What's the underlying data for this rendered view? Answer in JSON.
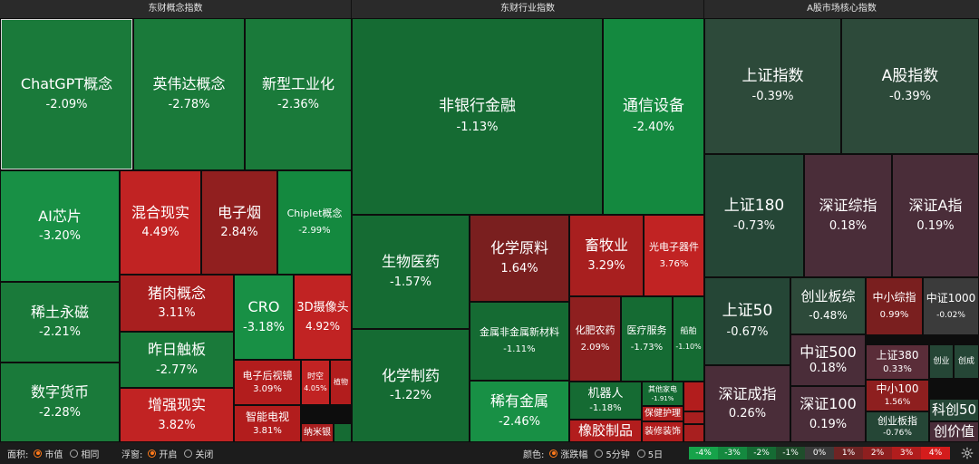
{
  "panels": {
    "concept": "东财概念指数",
    "industry": "东财行业指数",
    "market": "A股市场核心指数"
  },
  "tiles": {
    "chatgpt": {
      "name": "ChatGPT概念",
      "pct": "-2.09%"
    },
    "nvidia": {
      "name": "英伟达概念",
      "pct": "-2.78%"
    },
    "newindustrial": {
      "name": "新型工业化",
      "pct": "-2.36%"
    },
    "aichip": {
      "name": "AI芯片",
      "pct": "-3.20%"
    },
    "hybridreality": {
      "name": "混合现实",
      "pct": "4.49%"
    },
    "ecig": {
      "name": "电子烟",
      "pct": "2.84%"
    },
    "chiplet": {
      "name": "Chiplet概念",
      "pct": "-2.99%"
    },
    "rareearth": {
      "name": "稀土永磁",
      "pct": "-2.21%"
    },
    "pork": {
      "name": "猪肉概念",
      "pct": "3.11%"
    },
    "cro": {
      "name": "CRO",
      "pct": "-3.18%"
    },
    "camera3d": {
      "name": "3D摄像头",
      "pct": "4.92%"
    },
    "yesterday": {
      "name": "昨日触板",
      "pct": "-2.77%"
    },
    "digitalcurrency": {
      "name": "数字货币",
      "pct": "-2.28%"
    },
    "augmented": {
      "name": "增强现实",
      "pct": "3.82%"
    },
    "rearview": {
      "name": "电子后视镜",
      "pct": "3.09%"
    },
    "spacetime": {
      "name": "时空",
      "pct": "4.05%"
    },
    "plants": {
      "name": "植物",
      "pct": ""
    },
    "smarttv": {
      "name": "智能电视",
      "pct": "3.81%"
    },
    "nanosilver": {
      "name": "纳米银",
      "pct": ""
    },
    "nonbank": {
      "name": "非银行金融",
      "pct": "-1.13%"
    },
    "telecom": {
      "name": "通信设备",
      "pct": "-2.40%"
    },
    "biomed": {
      "name": "生物医药",
      "pct": "-1.57%"
    },
    "chemmaterial": {
      "name": "化学原料",
      "pct": "1.64%"
    },
    "livestock": {
      "name": "畜牧业",
      "pct": "3.29%"
    },
    "optoelectronic": {
      "name": "光电子器件",
      "pct": "3.76%"
    },
    "metalnonmetal": {
      "name": "金属非金属新材料",
      "pct": "-1.11%"
    },
    "fertilizer": {
      "name": "化肥农药",
      "pct": "2.09%"
    },
    "medicalservice": {
      "name": "医疗服务",
      "pct": "-1.73%"
    },
    "ships": {
      "name": "船舶",
      "pct": "-1.10%"
    },
    "chempharma": {
      "name": "化学制药",
      "pct": "-1.22%"
    },
    "raremetal": {
      "name": "稀有金属",
      "pct": "-2.46%"
    },
    "robot": {
      "name": "机器人",
      "pct": "-1.18%"
    },
    "otherappliance": {
      "name": "其他家电",
      "pct": "-1.91%"
    },
    "healthcare": {
      "name": "保健护理",
      "pct": ""
    },
    "decoration": {
      "name": "装修装饰",
      "pct": ""
    },
    "rubber": {
      "name": "橡胶制品",
      "pct": ""
    },
    "shanghai": {
      "name": "上证指数",
      "pct": "-0.39%"
    },
    "ashare": {
      "name": "A股指数",
      "pct": "-0.39%"
    },
    "sh180": {
      "name": "上证180",
      "pct": "-0.73%"
    },
    "szcomposite": {
      "name": "深证综指",
      "pct": "0.18%"
    },
    "sza": {
      "name": "深证A指",
      "pct": "0.19%"
    },
    "sh50": {
      "name": "上证50",
      "pct": "-0.67%"
    },
    "chinext": {
      "name": "创业板综",
      "pct": "-0.48%"
    },
    "smecomp": {
      "name": "中小综指",
      "pct": "0.99%"
    },
    "sme1000": {
      "name": "中证1000",
      "pct": "-0.02%"
    },
    "csi500": {
      "name": "中证500",
      "pct": "0.18%"
    },
    "sh380": {
      "name": "上证380",
      "pct": "0.33%"
    },
    "szcomponent": {
      "name": "深证成指",
      "pct": "0.26%"
    },
    "sz100": {
      "name": "深证100",
      "pct": "0.19%"
    },
    "sme100": {
      "name": "中小100",
      "pct": "1.56%"
    },
    "chinextindex": {
      "name": "创业板指",
      "pct": "-0.76%"
    },
    "chinext2": {
      "name": "创业",
      "pct": ""
    },
    "chinextnew": {
      "name": "创成",
      "pct": ""
    },
    "star50": {
      "name": "科创50",
      "pct": ""
    },
    "innovation": {
      "name": "创价值",
      "pct": ""
    }
  },
  "bottom": {
    "area_label": "面积:",
    "area_options": [
      "市值",
      "相同"
    ],
    "area_selected": "市值",
    "float_label": "浮窗:",
    "float_options": [
      "开启",
      "关闭"
    ],
    "float_selected": "开启",
    "color_label": "颜色:",
    "color_options": [
      "涨跌幅",
      "5分钟",
      "5日"
    ],
    "color_selected": "涨跌幅",
    "legend": [
      "-4%",
      "-3%",
      "-2%",
      "-1%",
      "0%",
      "1%",
      "2%",
      "3%",
      "4%"
    ],
    "legend_colors": [
      "#16a34a",
      "#14893f",
      "#156b33",
      "#1f4d2b",
      "#3b3b3b",
      "#6e2424",
      "#8e1f1f",
      "#b11d1d",
      "#d41c1c"
    ],
    "settings_icon": "gear-icon"
  }
}
